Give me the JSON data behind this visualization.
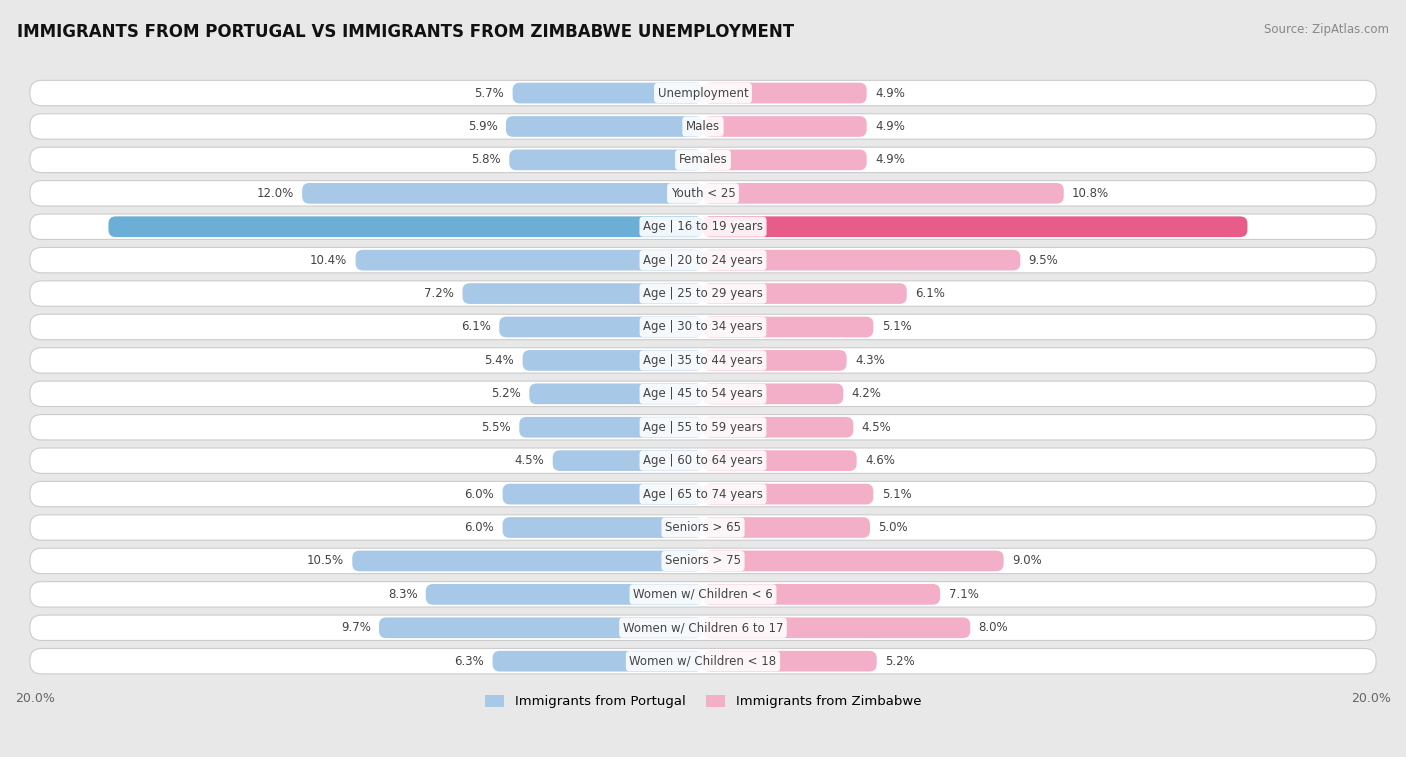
{
  "title": "IMMIGRANTS FROM PORTUGAL VS IMMIGRANTS FROM ZIMBABWE UNEMPLOYMENT",
  "source": "Source: ZipAtlas.com",
  "categories": [
    "Unemployment",
    "Males",
    "Females",
    "Youth < 25",
    "Age | 16 to 19 years",
    "Age | 20 to 24 years",
    "Age | 25 to 29 years",
    "Age | 30 to 34 years",
    "Age | 35 to 44 years",
    "Age | 45 to 54 years",
    "Age | 55 to 59 years",
    "Age | 60 to 64 years",
    "Age | 65 to 74 years",
    "Seniors > 65",
    "Seniors > 75",
    "Women w/ Children < 6",
    "Women w/ Children 6 to 17",
    "Women w/ Children < 18"
  ],
  "portugal_values": [
    5.7,
    5.9,
    5.8,
    12.0,
    17.8,
    10.4,
    7.2,
    6.1,
    5.4,
    5.2,
    5.5,
    4.5,
    6.0,
    6.0,
    10.5,
    8.3,
    9.7,
    6.3
  ],
  "zimbabwe_values": [
    4.9,
    4.9,
    4.9,
    10.8,
    16.3,
    9.5,
    6.1,
    5.1,
    4.3,
    4.2,
    4.5,
    4.6,
    5.1,
    5.0,
    9.0,
    7.1,
    8.0,
    5.2
  ],
  "portugal_color": "#a8c8e8",
  "zimbabwe_color": "#f4afc8",
  "portugal_highlight_color": "#6baed6",
  "zimbabwe_highlight_color": "#e85c8a",
  "bar_height": 0.62,
  "max_value": 20.0,
  "bg_color": "#e8e8e8",
  "label_color": "#444444",
  "title_color": "#111111",
  "axis_label_color": "#666666"
}
